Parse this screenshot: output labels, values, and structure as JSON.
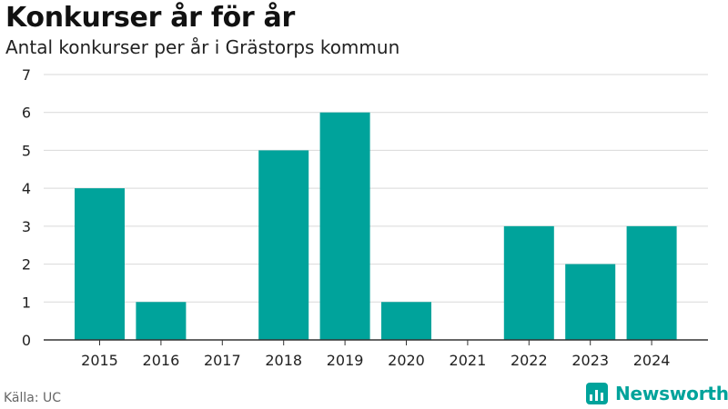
{
  "title": "Konkurser år för år",
  "subtitle": "Antal konkurser per år i Grästorps kommun",
  "source": "Källa: UC",
  "brand": {
    "name": "Newsworthy",
    "color": "#00a39b"
  },
  "colors": {
    "bar": "#00a39b",
    "grid": "#d9d9d9",
    "axis": "#333333",
    "text": "#222222"
  },
  "chart_data": {
    "type": "bar",
    "categories": [
      "2015",
      "2016",
      "2017",
      "2018",
      "2019",
      "2020",
      "2021",
      "2022",
      "2023",
      "2024"
    ],
    "values": [
      4,
      1,
      0,
      5,
      6,
      1,
      0,
      3,
      2,
      3
    ],
    "ylim": [
      0,
      7
    ],
    "yticks": [
      0,
      1,
      2,
      3,
      4,
      5,
      6,
      7
    ],
    "grid": true
  }
}
